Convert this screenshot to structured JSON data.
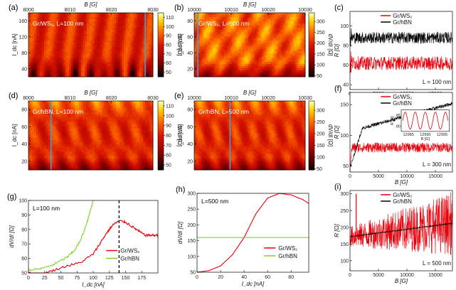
{
  "chart_data": [
    {
      "panel": "(a)",
      "type": "heatmap",
      "annotation": "Gr/WS₂, L=100 nm",
      "xlabel": "B [G]",
      "ylabel": "I_dc [nA]",
      "xlim": [
        8000,
        8032
      ],
      "ylim": [
        0,
        200
      ],
      "xticks": [
        "8000",
        "8010",
        "8020",
        "8030"
      ],
      "yticks": [
        "40",
        "80",
        "120",
        "160"
      ],
      "colorbar": {
        "label": "dV/dI [Ω]",
        "range": [
          45,
          115
        ],
        "ticks": [
          "50",
          "60",
          "70",
          "80",
          "90",
          "100",
          "110"
        ],
        "colormap": "hot"
      },
      "marker_B": 8030
    },
    {
      "panel": "(b)",
      "type": "heatmap",
      "annotation": "Gr/WS₂, L=500 nm",
      "xlabel": "B [G]",
      "ylabel": "I_dc [nA]",
      "xlim": [
        10000,
        10031
      ],
      "ylim": [
        0,
        100
      ],
      "xticks": [
        "10000",
        "10010",
        "10020",
        "10030"
      ],
      "yticks": [
        "20",
        "40",
        "60",
        "80"
      ],
      "colorbar": {
        "label": "dV/dI [Ω]",
        "range": [
          45,
          340
        ],
        "ticks": [
          "50",
          "100",
          "150",
          "200",
          "250",
          "300"
        ],
        "colormap": "hot"
      },
      "marker_B": 10001
    },
    {
      "panel": "(c)",
      "type": "line",
      "xlabel": "B [G]",
      "ylabel": "R [Ω]",
      "xlim": [
        0,
        18000
      ],
      "ylim": [
        35,
        115
      ],
      "xticks": [
        "0",
        "5000",
        "10000",
        "15000"
      ],
      "yticks": [
        "40",
        "60",
        "80",
        "100"
      ],
      "series": [
        {
          "name": "Gr/WS₂",
          "color": "#e8000b",
          "baseline": 62,
          "noise": 14
        },
        {
          "name": "Gr/hBN",
          "color": "#000000",
          "baseline": 88,
          "noise": 12
        }
      ],
      "annotation": "L = 100 nm"
    },
    {
      "panel": "(d)",
      "type": "heatmap",
      "annotation": "Gr/hBN, L=100 nm",
      "xlabel": "B [G]",
      "ylabel": "I_dc [nA]",
      "xlim": [
        8000,
        8033
      ],
      "ylim": [
        0,
        100
      ],
      "xticks": [
        "8000",
        "8010",
        "8020",
        "8030"
      ],
      "yticks": [
        "20",
        "40",
        "60",
        "80"
      ],
      "colorbar": {
        "label": "dV/dI [Ω]",
        "range": [
          45,
          115
        ],
        "ticks": [
          "50",
          "60",
          "70",
          "80",
          "90",
          "100",
          "110"
        ],
        "colormap": "hot"
      },
      "marker_B": 8006
    },
    {
      "panel": "(e)",
      "type": "heatmap",
      "annotation": "Gr/hBN, L=500 nm",
      "xlabel": "B [G]",
      "ylabel": "I_dc [nA]",
      "xlim": [
        10000,
        10031
      ],
      "ylim": [
        0,
        100
      ],
      "xticks": [
        "10000",
        "10010",
        "10020",
        "10030"
      ],
      "yticks": [
        "20",
        "40",
        "60",
        "80"
      ],
      "colorbar": {
        "label": "dV/dI [Ω]",
        "range": [
          45,
          340
        ],
        "ticks": [
          "50",
          "100",
          "150",
          "200",
          "250",
          "300"
        ],
        "colormap": "hot"
      },
      "uniform_value": 160,
      "marker_B": 10010
    },
    {
      "panel": "(f)",
      "type": "line",
      "xlabel": "B [G]",
      "ylabel": "R [Ω]",
      "xlim": [
        0,
        18000
      ],
      "ylim": [
        40,
        170
      ],
      "xticks": [
        "0",
        "5000",
        "10000",
        "15000"
      ],
      "yticks": [
        "50",
        "100",
        "150"
      ],
      "series": [
        {
          "name": "Gr/WS₂",
          "color": "#e8000b",
          "baseline": 80,
          "noise": 16
        },
        {
          "name": "Gr/hBN",
          "color": "#000000",
          "start": 50,
          "end": 152
        }
      ],
      "inset": {
        "xlabel": "B [G]",
        "ylabel": "R [Ω]",
        "xticks": [
          "12985",
          "12990",
          "12995"
        ],
        "yticks": [
          "80",
          "85"
        ],
        "color": "#e8000b",
        "periods": 4.5
      },
      "annotation": "L = 300 nm"
    },
    {
      "panel": "(g)",
      "type": "line",
      "annotation": "L=100 nm",
      "xlabel": "I_dc [nA]",
      "ylabel": "dV/dI [Ω]",
      "xlim": [
        0,
        200
      ],
      "ylim": [
        50,
        100
      ],
      "xticks": [
        "0",
        "25",
        "50",
        "75",
        "100",
        "125",
        "150",
        "175"
      ],
      "yticks": [
        "50",
        "60",
        "70",
        "80",
        "90",
        "100"
      ],
      "series": [
        {
          "name": "Gr/WS₂",
          "color": "#e8000b",
          "x": [
            0,
            20,
            40,
            60,
            80,
            100,
            110,
            120,
            130,
            140,
            150,
            160,
            170,
            180,
            190,
            200
          ],
          "y": [
            50,
            49,
            52,
            55,
            57,
            63,
            70,
            77,
            83,
            86,
            85,
            82,
            79,
            76,
            76,
            76
          ]
        },
        {
          "name": "Gr/hBN",
          "color": "#7ed321",
          "x": [
            0,
            20,
            40,
            60,
            70,
            80,
            90,
            95,
            100
          ],
          "y": [
            52,
            53,
            56,
            61,
            65,
            72,
            84,
            92,
            100
          ]
        }
      ],
      "vline_x": 140
    },
    {
      "panel": "(h)",
      "type": "line",
      "annotation": "L=500 nm",
      "xlabel": "I_dc [nA]",
      "ylabel": "dV/dI [Ω]",
      "xlim": [
        0,
        95
      ],
      "ylim": [
        50,
        300
      ],
      "xticks": [
        "0",
        "20",
        "40",
        "60",
        "80"
      ],
      "yticks": [
        "50",
        "100",
        "150",
        "200",
        "250",
        "300"
      ],
      "series": [
        {
          "name": "Gr/WS₂",
          "color": "#e8000b",
          "x": [
            0,
            10,
            20,
            30,
            40,
            50,
            60,
            70,
            80,
            90,
            95
          ],
          "y": [
            50,
            55,
            70,
            105,
            160,
            235,
            285,
            300,
            295,
            280,
            268
          ]
        },
        {
          "name": "Gr/hBN",
          "color": "#7ed321",
          "x": [
            0,
            95
          ],
          "y": [
            160,
            160
          ]
        }
      ]
    },
    {
      "panel": "(i)",
      "type": "line",
      "xlabel": "B [G]",
      "ylabel": "R [Ω]",
      "xlim": [
        0,
        18000
      ],
      "ylim": [
        70,
        310
      ],
      "xticks": [
        "0",
        "5000",
        "10000",
        "15000"
      ],
      "yticks": [
        "100",
        "150",
        "200",
        "250",
        "300"
      ],
      "series": [
        {
          "name": "Gr/WS₂",
          "color": "#e8000b",
          "start": 172,
          "end": 212,
          "noise_start": 30,
          "noise_end": 95
        },
        {
          "name": "Gr/hBN",
          "color": "#000000",
          "start": 172,
          "end": 212
        }
      ],
      "annotation": "L = 500 nm"
    }
  ]
}
